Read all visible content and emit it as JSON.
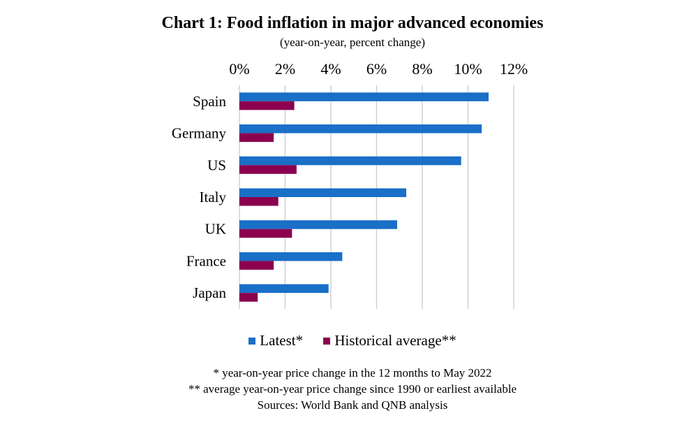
{
  "chart_data": {
    "type": "bar",
    "orientation": "horizontal",
    "title": "Chart 1: Food inflation in major advanced economies",
    "subtitle": "(year-on-year, percent change)",
    "categories": [
      "Spain",
      "Germany",
      "US",
      "Italy",
      "UK",
      "France",
      "Japan"
    ],
    "series": [
      {
        "name": "Latest*",
        "color": "#1a6fc6",
        "values": [
          10.9,
          10.6,
          9.7,
          7.3,
          6.9,
          4.5,
          3.9
        ]
      },
      {
        "name": "Historical average**",
        "color": "#8b004f",
        "values": [
          2.4,
          1.5,
          2.5,
          1.7,
          2.3,
          1.5,
          0.8
        ]
      }
    ],
    "xlim": [
      0,
      12
    ],
    "xticks": [
      "0%",
      "2%",
      "4%",
      "6%",
      "8%",
      "10%",
      "12%"
    ],
    "x_axis_position": "top",
    "grid": true,
    "legend_position": "bottom"
  },
  "notes": [
    "* year-on-year price change in the 12 months to May 2022",
    "** average year-on-year price change since 1990 or earliest available",
    "Sources: World Bank and QNB analysis"
  ]
}
